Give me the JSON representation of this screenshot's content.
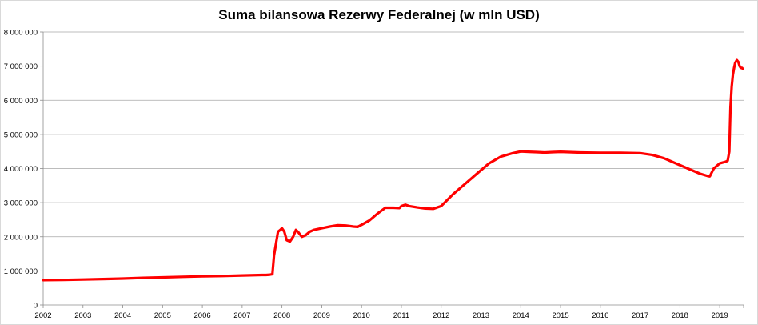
{
  "chart_data": {
    "type": "line",
    "title": "Suma bilansowa Rezerwy Federalnej (w mln USD)",
    "xlabel": "",
    "ylabel": "",
    "ylim": [
      0,
      8000000
    ],
    "xlim": [
      2002,
      2019.6
    ],
    "grid": true,
    "legend": "none",
    "y_ticks": [
      0,
      1000000,
      2000000,
      3000000,
      4000000,
      5000000,
      6000000,
      7000000,
      8000000
    ],
    "y_tick_labels": [
      "0",
      "1 000 000",
      "2 000 000",
      "3 000 000",
      "4 000 000",
      "5 000 000",
      "6 000 000",
      "7 000 000",
      "8 000 000"
    ],
    "x_ticks": [
      2002,
      2003,
      2004,
      2005,
      2006,
      2007,
      2008,
      2009,
      2010,
      2011,
      2012,
      2013,
      2014,
      2015,
      2016,
      2017,
      2018,
      2019
    ],
    "x_tick_labels": [
      "2002",
      "2003",
      "2004",
      "2005",
      "2006",
      "2007",
      "2008",
      "2009",
      "2010",
      "2011",
      "2012",
      "2013",
      "2014",
      "2015",
      "2016",
      "2017",
      "2018",
      "2019"
    ],
    "colors": {
      "line": "#ff0000",
      "grid": "#a6a6a6",
      "axis": "#8c8c8c"
    },
    "series": [
      {
        "x": [
          2002.0,
          2002.5,
          2003.0,
          2003.5,
          2004.0,
          2004.5,
          2005.0,
          2005.5,
          2006.0,
          2006.5,
          2007.0,
          2007.5,
          2007.6,
          2007.7,
          2007.76,
          2007.8,
          2007.9,
          2007.96,
          2008.0,
          2008.06,
          2008.12,
          2008.2,
          2008.28,
          2008.35,
          2008.4,
          2008.5,
          2008.6,
          2008.7,
          2008.8,
          2009.0,
          2009.2,
          2009.4,
          2009.6,
          2009.8,
          2009.9,
          2010.0,
          2010.2,
          2010.4,
          2010.6,
          2010.8,
          2010.95,
          2011.0,
          2011.1,
          2011.2,
          2011.4,
          2011.6,
          2011.8,
          2012.0,
          2012.3,
          2012.6,
          2012.9,
          2013.2,
          2013.5,
          2013.8,
          2014.0,
          2014.2,
          2014.4,
          2014.6,
          2014.8,
          2015.0,
          2015.5,
          2016.0,
          2016.5,
          2017.0,
          2017.3,
          2017.6,
          2017.9,
          2018.2,
          2018.5,
          2018.7,
          2018.75,
          2018.85,
          2019.0,
          2019.15,
          2019.2,
          2019.24,
          2019.27,
          2019.3,
          2019.33,
          2019.36,
          2019.39,
          2019.43,
          2019.47,
          2019.5,
          2019.53,
          2019.56,
          2019.58
        ],
        "values": [
          730000,
          735000,
          745000,
          760000,
          775000,
          795000,
          810000,
          825000,
          840000,
          850000,
          865000,
          880000,
          880000,
          890000,
          900000,
          1450000,
          2150000,
          2200000,
          2250000,
          2150000,
          1900000,
          1860000,
          2000000,
          2200000,
          2150000,
          2000000,
          2050000,
          2150000,
          2200000,
          2250000,
          2300000,
          2340000,
          2330000,
          2300000,
          2290000,
          2350000,
          2480000,
          2680000,
          2850000,
          2850000,
          2840000,
          2900000,
          2940000,
          2900000,
          2860000,
          2830000,
          2820000,
          2900000,
          3250000,
          3550000,
          3850000,
          4150000,
          4350000,
          4450000,
          4500000,
          4490000,
          4480000,
          4470000,
          4480000,
          4490000,
          4470000,
          4460000,
          4460000,
          4450000,
          4400000,
          4300000,
          4150000,
          4000000,
          3850000,
          3780000,
          3770000,
          4000000,
          4150000,
          4200000,
          4230000,
          4500000,
          5800000,
          6400000,
          6750000,
          6950000,
          7100000,
          7180000,
          7120000,
          7000000,
          6950000,
          6950000,
          6920000
        ]
      }
    ]
  }
}
